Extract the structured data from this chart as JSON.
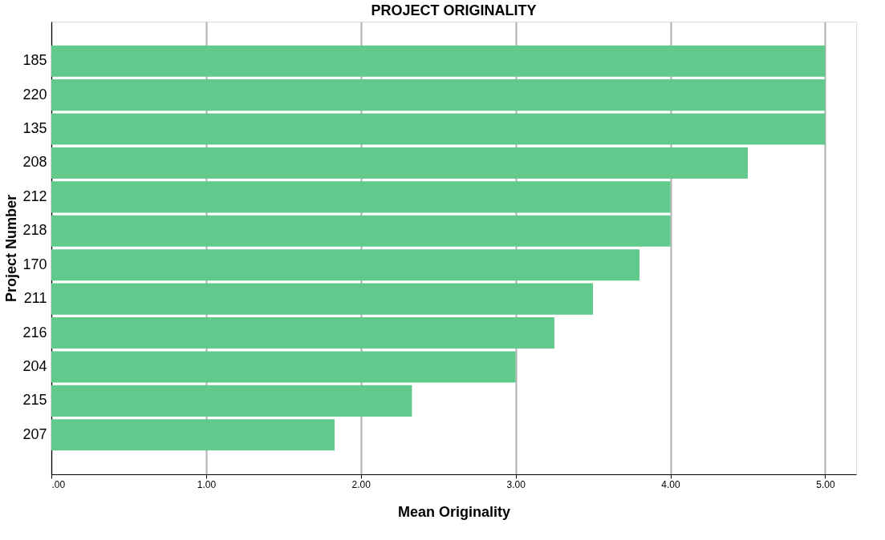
{
  "chart_data": {
    "type": "bar",
    "orientation": "horizontal",
    "title": "PROJECT ORIGINALITY",
    "xlabel": "Mean Originality",
    "ylabel": "Project Number",
    "categories": [
      "185",
      "220",
      "135",
      "208",
      "212",
      "218",
      "170",
      "211",
      "216",
      "204",
      "215",
      "207"
    ],
    "values": [
      5.0,
      5.0,
      5.0,
      4.5,
      4.0,
      4.0,
      3.8,
      3.5,
      3.25,
      3.0,
      2.33,
      1.83
    ],
    "color": "#60c98b",
    "xlim": [
      0,
      5.2
    ],
    "xticks": [
      {
        "value": 0,
        "label": ".00"
      },
      {
        "value": 1,
        "label": "1.00"
      },
      {
        "value": 2,
        "label": "2.00"
      },
      {
        "value": 3,
        "label": "3.00"
      },
      {
        "value": 4,
        "label": "4.00"
      },
      {
        "value": 5,
        "label": "5.00"
      }
    ],
    "grid": "x"
  }
}
